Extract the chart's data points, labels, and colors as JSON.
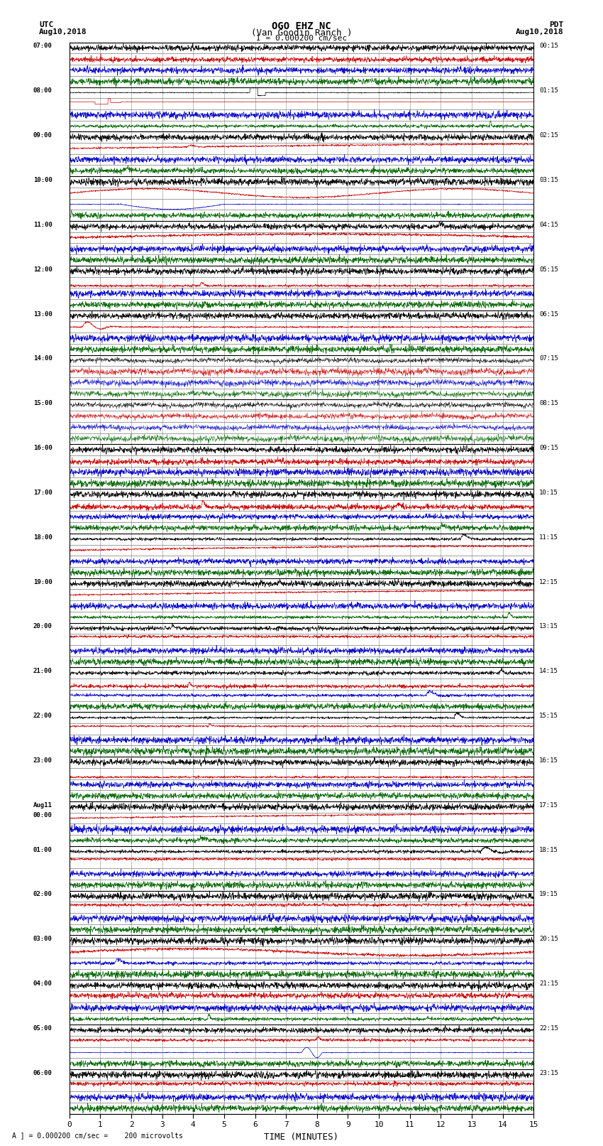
{
  "title_line1": "OGO EHZ NC",
  "title_line2": "(Van Goodin Ranch )",
  "title_scale": "I = 0.000200 cm/sec",
  "utc_label": "UTC",
  "utc_date": "Aug10,2018",
  "pdt_label": "PDT",
  "pdt_date": "Aug10,2018",
  "xlabel": "TIME (MINUTES)",
  "footer": "A ] = 0.000200 cm/sec =    200 microvolts",
  "left_times": [
    "07:00",
    "08:00",
    "09:00",
    "10:00",
    "11:00",
    "12:00",
    "13:00",
    "14:00",
    "15:00",
    "16:00",
    "17:00",
    "18:00",
    "19:00",
    "20:00",
    "21:00",
    "22:00",
    "23:00",
    "Aug11\n00:00",
    "01:00",
    "02:00",
    "03:00",
    "04:00",
    "05:00",
    "06:00"
  ],
  "right_times": [
    "00:15",
    "01:15",
    "02:15",
    "03:15",
    "04:15",
    "05:15",
    "06:15",
    "07:15",
    "08:15",
    "09:15",
    "10:15",
    "11:15",
    "12:15",
    "13:15",
    "14:15",
    "15:15",
    "16:15",
    "17:15",
    "18:15",
    "19:15",
    "20:15",
    "21:15",
    "22:15",
    "23:15"
  ],
  "n_hours": 24,
  "traces_per_hour": 4,
  "xmin": 0,
  "xmax": 15,
  "background_color": "#ffffff",
  "grid_color": "#777777",
  "trace_colors": [
    "#000000",
    "#cc0000",
    "#0000cc",
    "#006600"
  ],
  "fig_width": 8.5,
  "fig_height": 16.13
}
